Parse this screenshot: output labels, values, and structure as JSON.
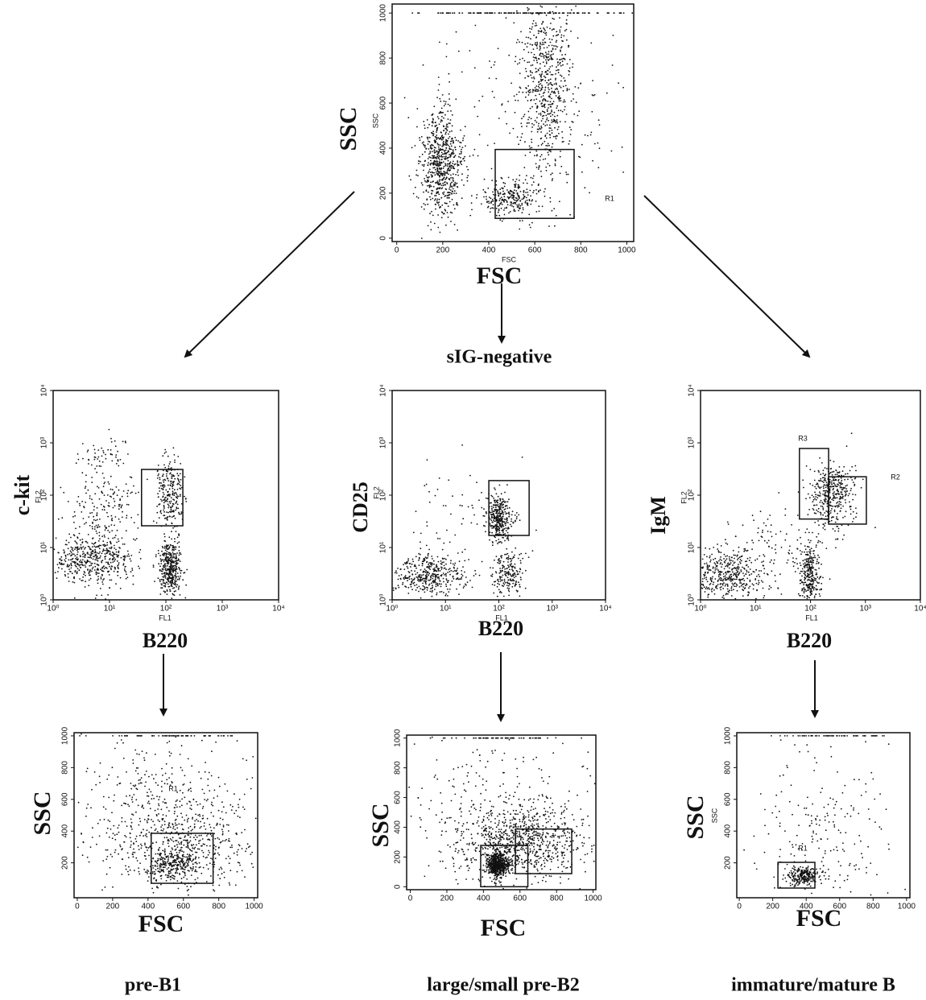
{
  "figure": {
    "middle_label": "sIG-negative",
    "captions": [
      "pre-B1",
      "large/small pre-B2",
      "immature/mature B"
    ]
  },
  "chart_data": [
    {
      "type": "scatter",
      "xlabel": "FSC",
      "ylabel": "SSC",
      "x_channel": "FSC",
      "y_channel": "SSC",
      "xscale": "linear",
      "yscale": "linear",
      "xlim": [
        -20,
        1030
      ],
      "ylim": [
        -15,
        1040
      ],
      "xticks": [
        0,
        200,
        400,
        600,
        800,
        1000
      ],
      "yticks": [
        0,
        200,
        400,
        600,
        800,
        1000
      ],
      "gates": [
        {
          "label": "R1",
          "x0": 428,
          "x1": 771,
          "y0": 88,
          "y1": 394
        }
      ],
      "clusters": [
        {
          "x": 190,
          "y": 330,
          "sx": 45,
          "sy": 120,
          "count": 700
        },
        {
          "x": 650,
          "y": 700,
          "sx": 60,
          "sy": 200,
          "count": 600
        },
        {
          "x": 500,
          "y": 180,
          "sx": 60,
          "sy": 40,
          "count": 250
        },
        {
          "x": 550,
          "y": 500,
          "sx": 250,
          "sy": 300,
          "count": 200
        },
        {
          "x": 550,
          "y": 1000,
          "sx": 230,
          "sy": 0,
          "count": 150
        }
      ]
    },
    {
      "type": "scatter",
      "xlabel": "B220",
      "ylabel": "c-kit",
      "x_channel": "FL1",
      "y_channel": "FL2",
      "xscale": "log",
      "yscale": "log",
      "xlim": [
        1,
        10000
      ],
      "ylim": [
        1,
        10000
      ],
      "xticks": [
        {
          "value": 1,
          "label": "10⁰"
        },
        {
          "value": 10,
          "label": "10¹"
        },
        {
          "value": 100,
          "label": "10²"
        },
        {
          "value": 1000,
          "label": "10³"
        },
        {
          "value": 10000,
          "label": "10⁴"
        }
      ],
      "yticks": [
        {
          "value": 1,
          "label": "10⁰"
        },
        {
          "value": 10,
          "label": "10¹"
        },
        {
          "value": 100,
          "label": "10²"
        },
        {
          "value": 1000,
          "label": "10³"
        },
        {
          "value": 10000,
          "label": "10⁴"
        }
      ],
      "gates": [
        {
          "x0": 37,
          "x1": 200,
          "y0": 26,
          "y1": 310
        }
      ],
      "clusters": [
        {
          "x": 5,
          "y": 6,
          "sx": 0.35,
          "sy": 0.25,
          "count": 500
        },
        {
          "x": 120,
          "y": 4,
          "sx": 0.1,
          "sy": 0.25,
          "count": 400
        },
        {
          "x": 120,
          "y": 100,
          "sx": 0.12,
          "sy": 0.35,
          "count": 250
        },
        {
          "x": 8,
          "y": 600,
          "sx": 0.25,
          "sy": 0.2,
          "count": 60
        },
        {
          "x": 8,
          "y": 60,
          "sx": 0.3,
          "sy": 0.3,
          "count": 150
        }
      ]
    },
    {
      "type": "scatter",
      "xlabel": "B220",
      "ylabel": "CD25",
      "x_channel": "FL1",
      "y_channel": "FL2",
      "xscale": "log",
      "yscale": "log",
      "xlim": [
        1,
        10000
      ],
      "ylim": [
        1,
        10000
      ],
      "xticks": [
        {
          "value": 1,
          "label": "10⁰"
        },
        {
          "value": 10,
          "label": "10¹"
        },
        {
          "value": 100,
          "label": "10²"
        },
        {
          "value": 1000,
          "label": "10³"
        },
        {
          "value": 10000,
          "label": "10⁴"
        }
      ],
      "yticks": [
        {
          "value": 1,
          "label": "10⁰"
        },
        {
          "value": 10,
          "label": "10¹"
        },
        {
          "value": 100,
          "label": "10²"
        },
        {
          "value": 1000,
          "label": "10³"
        },
        {
          "value": 10000,
          "label": "10⁴"
        }
      ],
      "gates": [
        {
          "x0": 65,
          "x1": 370,
          "y0": 17,
          "y1": 190
        }
      ],
      "clusters": [
        {
          "x": 5,
          "y": 3,
          "sx": 0.35,
          "sy": 0.2,
          "count": 400
        },
        {
          "x": 100,
          "y": 35,
          "sx": 0.12,
          "sy": 0.2,
          "count": 350
        },
        {
          "x": 150,
          "y": 3,
          "sx": 0.15,
          "sy": 0.25,
          "count": 200
        },
        {
          "x": 20,
          "y": 60,
          "sx": 0.5,
          "sy": 0.5,
          "count": 60
        }
      ]
    },
    {
      "type": "scatter",
      "xlabel": "B220",
      "ylabel": "IgM",
      "x_channel": "FL1",
      "y_channel": "FL2",
      "xscale": "log",
      "yscale": "log",
      "xlim": [
        1,
        10000
      ],
      "ylim": [
        1,
        10000
      ],
      "xticks": [
        {
          "value": 1,
          "label": "10⁰"
        },
        {
          "value": 10,
          "label": "10¹"
        },
        {
          "value": 100,
          "label": "10²"
        },
        {
          "value": 1000,
          "label": "10³"
        },
        {
          "value": 10000,
          "label": "10⁴"
        }
      ],
      "yticks": [
        {
          "value": 1,
          "label": "10⁰"
        },
        {
          "value": 10,
          "label": "10¹"
        },
        {
          "value": 100,
          "label": "10²"
        },
        {
          "value": 1000,
          "label": "10³"
        },
        {
          "value": 10000,
          "label": "10⁴"
        }
      ],
      "gates": [
        {
          "label": "R3",
          "x0": 63,
          "x1": 214,
          "y0": 35,
          "y1": 780
        },
        {
          "label": "R2",
          "x0": 214,
          "x1": 1040,
          "y0": 28,
          "y1": 225
        }
      ],
      "clusters": [
        {
          "x": 3,
          "y": 3,
          "sx": 0.35,
          "sy": 0.25,
          "count": 450
        },
        {
          "x": 100,
          "y": 3,
          "sx": 0.1,
          "sy": 0.3,
          "count": 300
        },
        {
          "x": 250,
          "y": 100,
          "sx": 0.2,
          "sy": 0.35,
          "count": 400
        },
        {
          "x": 20,
          "y": 10,
          "sx": 0.4,
          "sy": 0.4,
          "count": 100
        }
      ]
    },
    {
      "type": "scatter",
      "xlabel": "FSC",
      "ylabel": "SSC",
      "xscale": "linear",
      "yscale": "linear",
      "xlim": [
        -18,
        1020
      ],
      "ylim": [
        -20,
        1020
      ],
      "xticks": [
        0,
        200,
        400,
        600,
        800,
        1000
      ],
      "yticks": [
        200,
        400,
        600,
        800,
        1000
      ],
      "gates": [
        {
          "label": "R1",
          "x0": 418,
          "x1": 768,
          "y0": 71,
          "y1": 386
        }
      ],
      "clusters": [
        {
          "x": 620,
          "y": 300,
          "sx": 180,
          "sy": 150,
          "count": 500
        },
        {
          "x": 550,
          "y": 200,
          "sx": 60,
          "sy": 40,
          "count": 200
        },
        {
          "x": 450,
          "y": 550,
          "sx": 250,
          "sy": 250,
          "count": 400
        },
        {
          "x": 550,
          "y": 1000,
          "sx": 220,
          "sy": 0,
          "count": 80
        }
      ]
    },
    {
      "type": "scatter",
      "xlabel": "FSC",
      "ylabel": "SSC",
      "xscale": "linear",
      "yscale": "linear",
      "xlim": [
        -20,
        1015
      ],
      "ylim": [
        -20,
        1020
      ],
      "xticks": [
        0,
        200,
        400,
        600,
        800,
        1000
      ],
      "yticks": [
        0,
        200,
        400,
        600,
        800,
        1000
      ],
      "gates": [
        {
          "x0": 385,
          "x1": 643,
          "y0": 0,
          "y1": 278
        },
        {
          "x0": 575,
          "x1": 883,
          "y0": 88,
          "y1": 388
        }
      ],
      "clusters": [
        {
          "x": 480,
          "y": 150,
          "sx": 30,
          "sy": 40,
          "count": 600
        },
        {
          "x": 600,
          "y": 300,
          "sx": 170,
          "sy": 120,
          "count": 800
        },
        {
          "x": 500,
          "y": 500,
          "sx": 250,
          "sy": 250,
          "count": 300
        },
        {
          "x": 550,
          "y": 1000,
          "sx": 240,
          "sy": 0,
          "count": 60
        }
      ]
    },
    {
      "type": "scatter",
      "xlabel": "FSC",
      "ylabel": "SSC",
      "y_channel": "SSC",
      "xscale": "linear",
      "yscale": "linear",
      "xlim": [
        -15,
        1020
      ],
      "ylim": [
        -20,
        1020
      ],
      "xticks": [
        0,
        200,
        400,
        600,
        800,
        1000
      ],
      "yticks": [
        200,
        400,
        600,
        800,
        1000
      ],
      "gates": [
        {
          "label": "R1",
          "x0": 231,
          "x1": 452,
          "y0": 41,
          "y1": 203
        }
      ],
      "clusters": [
        {
          "x": 380,
          "y": 120,
          "sx": 50,
          "sy": 30,
          "count": 250
        },
        {
          "x": 500,
          "y": 400,
          "sx": 200,
          "sy": 250,
          "count": 200
        },
        {
          "x": 550,
          "y": 1000,
          "sx": 220,
          "sy": 0,
          "count": 60
        }
      ]
    }
  ]
}
